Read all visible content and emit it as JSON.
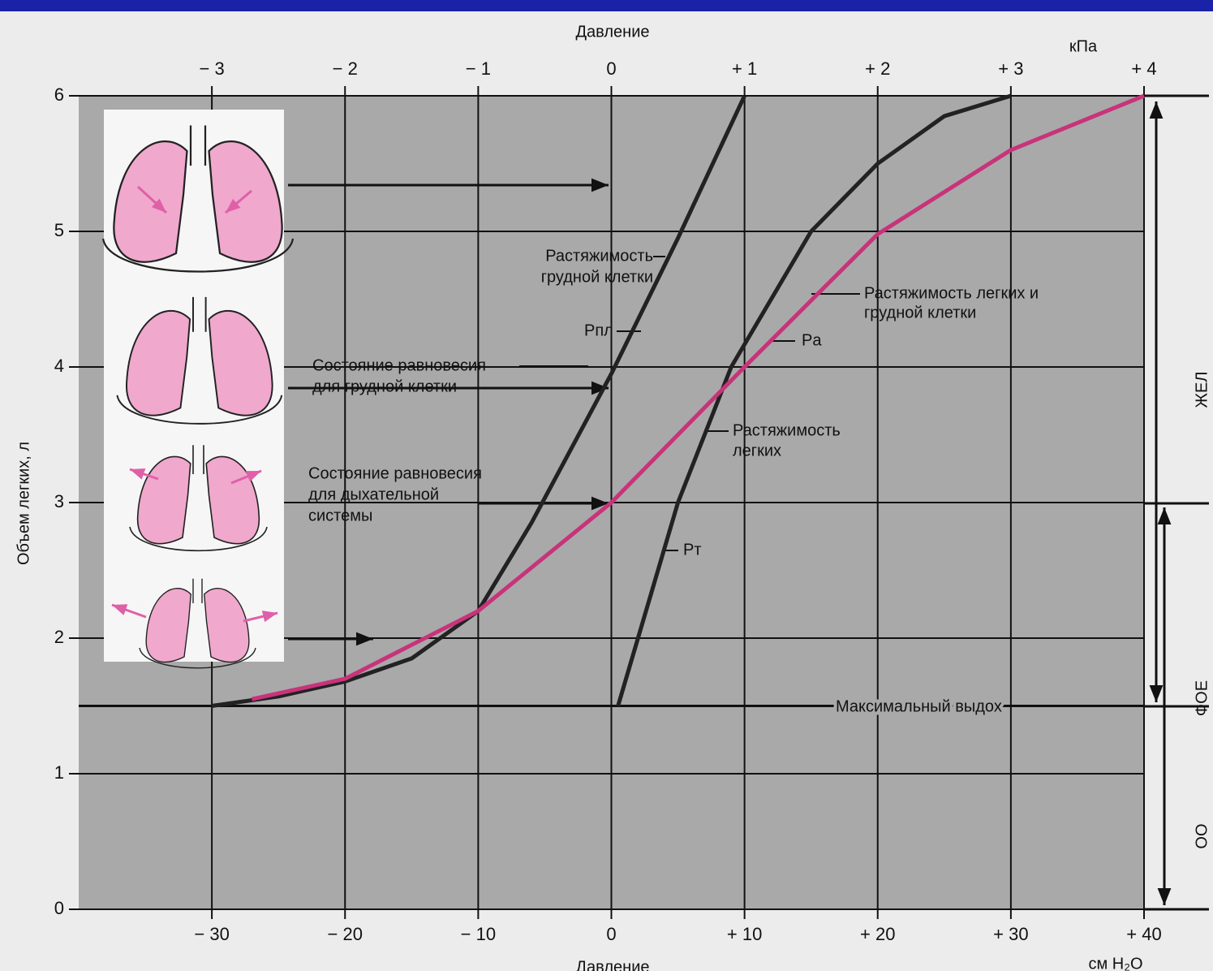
{
  "chart_data": {
    "type": "line",
    "x_label_top": "Давление",
    "x2_unit": "кПа",
    "x_label": "Давление",
    "x_unit": "см H₂O",
    "y_label": "Объем легких, л",
    "xlim": [
      -40,
      40
    ],
    "xticks": [
      {
        "value": -30,
        "label": "− 30"
      },
      {
        "value": -20,
        "label": "− 20"
      },
      {
        "value": -10,
        "label": "− 10"
      },
      0,
      {
        "value": 10,
        "label": "+ 10"
      },
      {
        "value": 20,
        "label": "+ 20"
      },
      {
        "value": 30,
        "label": "+ 30"
      },
      {
        "value": 40,
        "label": "+ 40"
      }
    ],
    "x2lim": [
      -4,
      4
    ],
    "x2ticks": [
      {
        "value": -3,
        "label": "− 3"
      },
      {
        "value": -2,
        "label": "− 2"
      },
      {
        "value": -1,
        "label": "− 1"
      },
      0,
      {
        "value": 1,
        "label": "+ 1"
      },
      {
        "value": 2,
        "label": "+ 2"
      },
      {
        "value": 3,
        "label": "+ 3"
      },
      {
        "value": 4,
        "label": "+ 4"
      }
    ],
    "ylim": [
      0,
      6
    ],
    "yticks": [
      0,
      1,
      2,
      3,
      4,
      5,
      6
    ],
    "grid": true,
    "series": [
      {
        "color": "#222222",
        "x": [
          -30,
          -25,
          -20,
          -15,
          -10,
          -6,
          -3,
          0,
          5,
          10
        ],
        "values": [
          1.5,
          1.57,
          1.68,
          1.85,
          2.2,
          2.85,
          3.4,
          3.95,
          4.95,
          6
        ]
      },
      {
        "color": "#222222",
        "x": [
          0.5,
          2,
          5,
          9,
          15,
          20,
          25,
          30
        ],
        "values": [
          1.5,
          2,
          3,
          4,
          5,
          5.5,
          5.85,
          6
        ]
      },
      {
        "color": "#c8337a",
        "x": [
          -27,
          -20,
          -10,
          0,
          10,
          20,
          30,
          40
        ],
        "values": [
          1.55,
          1.7,
          2.2,
          3,
          4,
          4.98,
          5.6,
          6
        ]
      }
    ],
    "annotations": [
      "Растяжимость",
      "грудной клетки",
      "Растяжимость легких и",
      "грудной клетки",
      "Pпл",
      "Pа",
      "Состояние равновесия",
      "для грудной  клетки",
      "Растяжимость",
      "легких",
      "Состояние равновесия",
      "для дыхательной",
      "системы",
      "Pт",
      "Максимальный выдох",
      "ЖЕЛ",
      "ФОЕ",
      "ОО"
    ]
  }
}
